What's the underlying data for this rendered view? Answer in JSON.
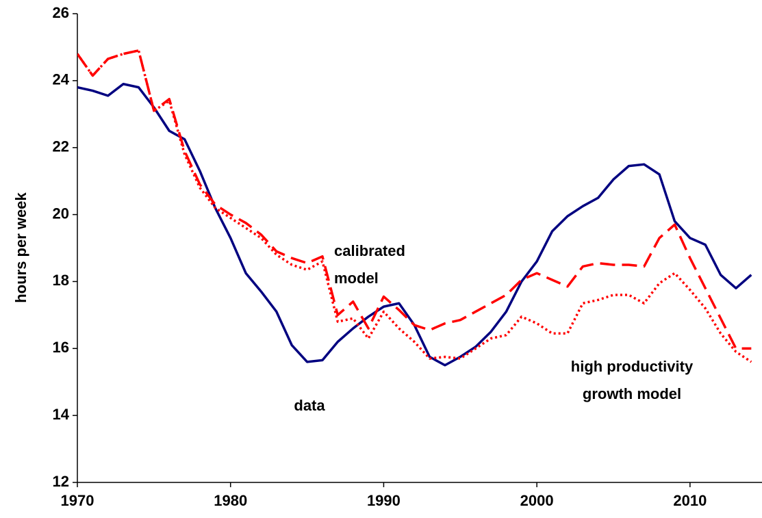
{
  "chart_data": {
    "type": "line",
    "ylabel": "hours per week",
    "x": [
      1970,
      1971,
      1972,
      1973,
      1974,
      1975,
      1976,
      1977,
      1978,
      1979,
      1980,
      1981,
      1982,
      1983,
      1984,
      1985,
      1986,
      1987,
      1988,
      1989,
      1990,
      1991,
      1992,
      1993,
      1994,
      1995,
      1996,
      1997,
      1998,
      1999,
      2000,
      2001,
      2002,
      2003,
      2004,
      2005,
      2006,
      2007,
      2008,
      2009,
      2010,
      2011,
      2012,
      2013,
      2014
    ],
    "series": [
      {
        "name": "data",
        "color": "#000080",
        "dash": "solid",
        "values": [
          23.8,
          23.7,
          23.55,
          23.9,
          23.8,
          23.2,
          22.5,
          22.25,
          21.3,
          20.2,
          19.3,
          18.25,
          17.7,
          17.1,
          16.1,
          15.6,
          15.65,
          16.2,
          16.6,
          16.95,
          17.25,
          17.35,
          16.7,
          15.75,
          15.5,
          15.75,
          16.05,
          16.5,
          17.1,
          18.0,
          18.6,
          19.5,
          19.95,
          20.25,
          20.5,
          21.05,
          21.45,
          21.5,
          21.2,
          19.8,
          19.3,
          19.1,
          18.2,
          17.8,
          18.2
        ]
      },
      {
        "name": "calibrated model",
        "color": "#ff0000",
        "dash": "dashed",
        "values": [
          24.8,
          24.15,
          24.65,
          24.8,
          24.9,
          23.1,
          23.45,
          21.9,
          20.9,
          20.3,
          20.0,
          19.75,
          19.4,
          18.9,
          18.7,
          18.55,
          18.75,
          17.0,
          17.4,
          16.6,
          17.55,
          17.15,
          16.7,
          16.55,
          16.75,
          16.85,
          17.1,
          17.35,
          17.6,
          18.05,
          18.25,
          18.05,
          17.85,
          18.45,
          18.55,
          18.5,
          18.5,
          18.45,
          19.3,
          19.7,
          18.7,
          17.8,
          16.9,
          16.0,
          16.0
        ]
      },
      {
        "name": "high productivity growth model",
        "color": "#ff0000",
        "dash": "dotted",
        "values": [
          24.8,
          24.15,
          24.65,
          24.8,
          24.9,
          23.1,
          23.4,
          21.8,
          20.8,
          20.2,
          19.9,
          19.6,
          19.3,
          18.8,
          18.5,
          18.35,
          18.6,
          16.8,
          16.9,
          16.3,
          17.1,
          16.6,
          16.2,
          15.7,
          15.75,
          15.7,
          16.0,
          16.3,
          16.4,
          16.95,
          16.75,
          16.45,
          16.45,
          17.35,
          17.45,
          17.6,
          17.6,
          17.35,
          17.95,
          18.25,
          17.75,
          17.2,
          16.45,
          15.9,
          15.6
        ]
      }
    ],
    "annotations": [
      [
        "calibrated",
        "model"
      ],
      [
        "data"
      ],
      [
        "high productivity",
        "growth model"
      ]
    ],
    "xlim": [
      1970,
      2014.7
    ],
    "xticks": [
      1970,
      1980,
      1990,
      2000,
      2010
    ],
    "ylim": [
      12,
      26
    ],
    "yticks": [
      12,
      14,
      16,
      18,
      20,
      22,
      24,
      26
    ],
    "grid": false
  }
}
